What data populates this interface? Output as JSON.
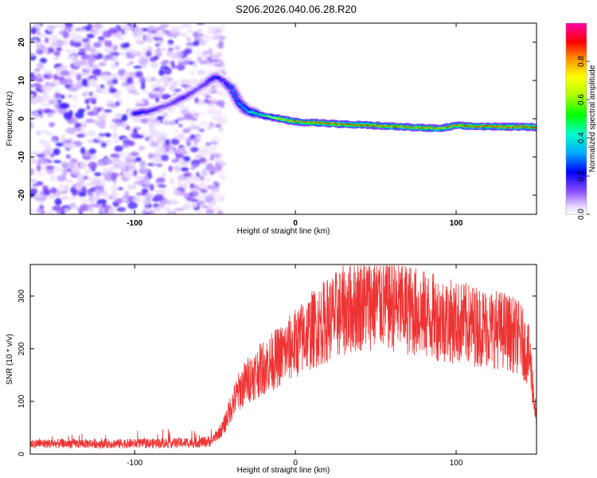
{
  "title": "S206.2026.040.06.28.R20",
  "chart_data": [
    {
      "type": "heatmap",
      "name": "spectrogram",
      "xlabel": "Height of straight line (km)",
      "ylabel": "Frequency (Hz)",
      "xlim": [
        -165,
        150
      ],
      "ylim": [
        -25,
        25
      ],
      "xticks": [
        -100,
        0,
        100
      ],
      "xtick_labels": [
        "-100",
        "0",
        "100"
      ],
      "yticks": [
        -20,
        -10,
        0,
        10,
        20
      ],
      "ytick_labels": [
        "-20",
        "-10",
        "0",
        "10",
        "20"
      ],
      "colorbar": {
        "label": "Normalized spectral amplitude",
        "range": [
          0,
          1
        ],
        "ticks": [
          0.0,
          0.2,
          0.4,
          0.6,
          0.8
        ],
        "tick_labels": [
          "0.0",
          "0.2",
          "0.4",
          "0.6",
          "0.8"
        ]
      },
      "ridge": {
        "x": [
          -100,
          -90,
          -80,
          -70,
          -60,
          -50,
          -45,
          -40,
          -35,
          -30,
          -25,
          -20,
          -10,
          0,
          10,
          20,
          30,
          40,
          50,
          60,
          70,
          80,
          90,
          100,
          110,
          120,
          130,
          140,
          150
        ],
        "y": [
          1.5,
          2,
          3.5,
          5.5,
          8,
          11,
          10,
          8,
          4,
          2,
          1.5,
          0.8,
          0,
          -0.8,
          -1,
          -1.2,
          -1.5,
          -1.6,
          -1.8,
          -2,
          -2.2,
          -2.4,
          -2.6,
          -1.8,
          -2,
          -2,
          -2.1,
          -2.1,
          -2.2
        ],
        "amplitude": [
          0.25,
          0.2,
          0.15,
          0.2,
          0.15,
          0.25,
          0.2,
          0.3,
          0.35,
          0.4,
          0.5,
          0.6,
          0.85,
          0.9,
          0.92,
          0.95,
          0.95,
          0.95,
          0.93,
          0.9,
          0.9,
          0.9,
          0.88,
          0.92,
          0.95,
          0.95,
          0.95,
          0.95,
          0.95
        ]
      },
      "noise_region_x": [
        -165,
        -55
      ]
    },
    {
      "type": "line",
      "name": "snr",
      "xlabel": "Height of straight line (km)",
      "ylabel": "SNR (10 * v/v)",
      "xlim": [
        -165,
        150
      ],
      "ylim": [
        0,
        360
      ],
      "xticks": [
        -100,
        0,
        100
      ],
      "xtick_labels": [
        "-100",
        "0",
        "100"
      ],
      "yticks": [
        0,
        100,
        200,
        300
      ],
      "ytick_labels": [
        "0",
        "100",
        "200",
        "300"
      ],
      "color": "#ee3333",
      "envelope": {
        "x": [
          -165,
          -100,
          -60,
          -52,
          -45,
          -40,
          -35,
          -30,
          -20,
          -10,
          0,
          10,
          20,
          30,
          40,
          50,
          60,
          70,
          80,
          90,
          100,
          110,
          120,
          130,
          140,
          146,
          150
        ],
        "y": [
          20,
          20,
          22,
          25,
          50,
          90,
          120,
          140,
          165,
          185,
          210,
          235,
          255,
          272,
          285,
          290,
          285,
          275,
          265,
          258,
          250,
          245,
          240,
          235,
          220,
          180,
          60
        ]
      },
      "noise_amplitude": 0.32
    }
  ]
}
